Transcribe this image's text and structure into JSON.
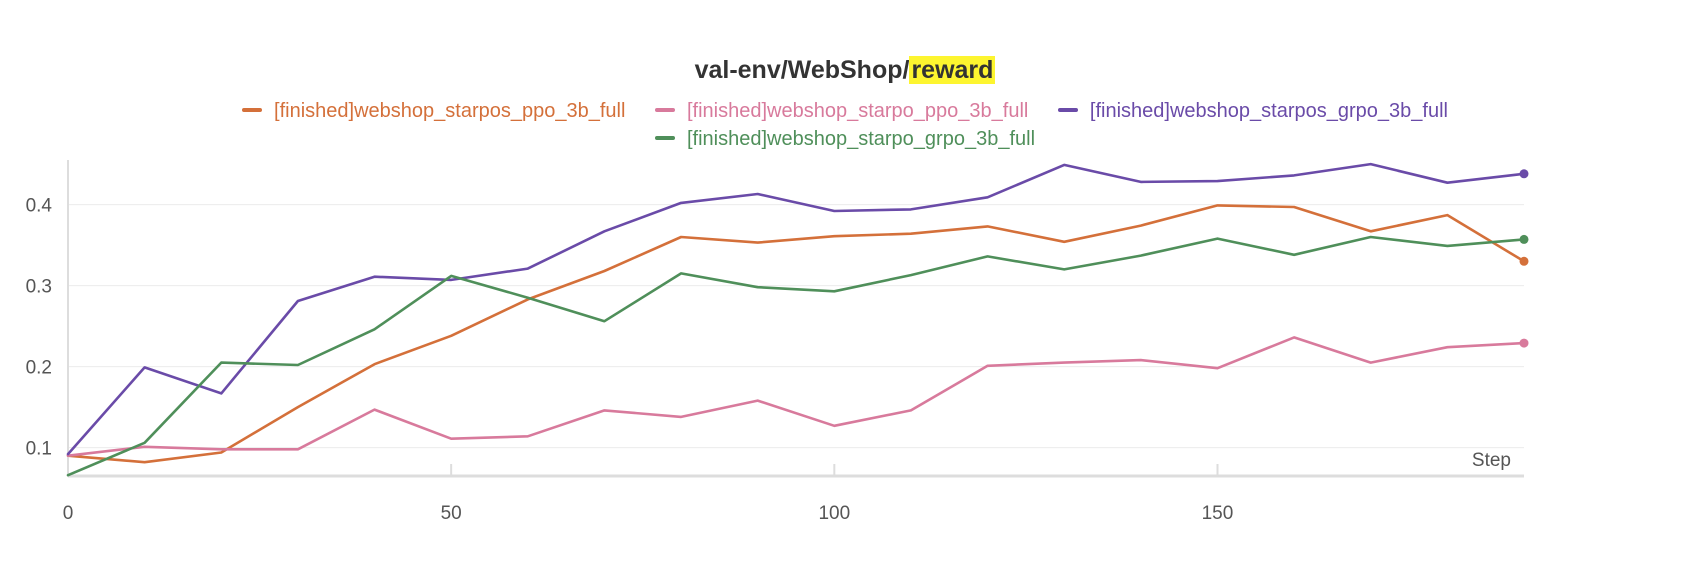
{
  "title": {
    "prefix": "val-env/WebShop/",
    "highlight": "reward",
    "highlight_color": "#fdf52f"
  },
  "chart_data": {
    "type": "line",
    "title": "val-env/WebShop/reward",
    "xlabel": "Step",
    "ylabel": "",
    "xlim": [
      0,
      190
    ],
    "ylim": [
      0.065,
      0.455
    ],
    "x_ticks": [
      0,
      50,
      100,
      150
    ],
    "y_ticks": [
      0.1,
      0.2,
      0.3,
      0.4
    ],
    "grid": true,
    "legend_position": "top-center",
    "x": [
      0,
      10,
      20,
      30,
      40,
      50,
      60,
      70,
      80,
      90,
      100,
      110,
      120,
      130,
      140,
      150,
      160,
      170,
      180,
      190
    ],
    "series": [
      {
        "name": "[finished]webshop_starpos_ppo_3b_full",
        "color": "#d4703a",
        "values": [
          0.09,
          0.082,
          0.094,
          0.15,
          0.203,
          0.238,
          0.283,
          0.318,
          0.36,
          0.353,
          0.361,
          0.364,
          0.373,
          0.354,
          0.374,
          0.399,
          0.397,
          0.367,
          0.387,
          0.33
        ]
      },
      {
        "name": "[finished]webshop_starpo_ppo_3b_full",
        "color": "#d87a9c",
        "values": [
          0.09,
          0.101,
          0.098,
          0.098,
          0.147,
          0.111,
          0.114,
          0.146,
          0.138,
          0.158,
          0.127,
          0.146,
          0.201,
          0.205,
          0.208,
          0.198,
          0.236,
          0.205,
          0.224,
          0.229
        ]
      },
      {
        "name": "[finished]webshop_starpos_grpo_3b_full",
        "color": "#6a4ba8",
        "values": [
          0.092,
          0.199,
          0.167,
          0.281,
          0.311,
          0.307,
          0.321,
          0.367,
          0.402,
          0.413,
          0.392,
          0.394,
          0.409,
          0.449,
          0.428,
          0.429,
          0.436,
          0.45,
          0.427,
          0.438
        ]
      },
      {
        "name": "[finished]webshop_starpo_grpo_3b_full",
        "color": "#4f8f5a",
        "values": [
          0.066,
          0.106,
          0.205,
          0.202,
          0.246,
          0.312,
          0.285,
          0.256,
          0.315,
          0.298,
          0.293,
          0.313,
          0.336,
          0.32,
          0.337,
          0.358,
          0.338,
          0.36,
          0.349,
          0.357
        ]
      }
    ]
  }
}
